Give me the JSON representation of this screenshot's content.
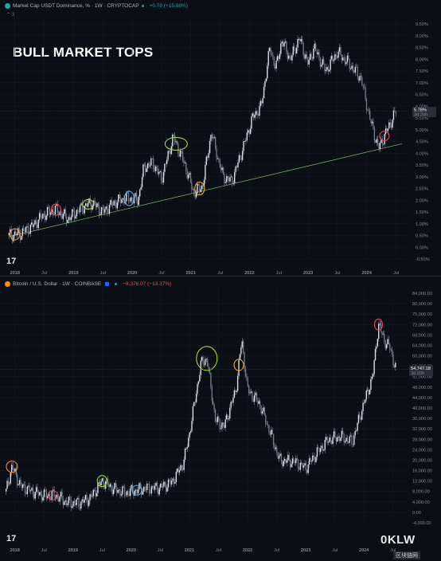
{
  "annotation_title": "BULL MARKET TOPS",
  "colors": {
    "candle": "#d8dde6",
    "wick": "#9aa3b2",
    "support_line": "#7cc46a",
    "circle_orange": "#f08a3c",
    "circle_red": "#e5455c",
    "circle_green": "#9ed84a",
    "circle_blue": "#5fa8e8",
    "circle_yellow": "#f0b23c"
  },
  "top_pane": {
    "legend": {
      "name": "Market Cap USDT Dominance, % · 1W · CRYPTOCAP",
      "change": "+0.78 (+15.88%)",
      "collapse": "⌃ 3"
    },
    "price_tag": "5.78%",
    "countdown": "3d 20h",
    "x_labels": [
      "2018",
      "Jul",
      "2019",
      "Jul",
      "2020",
      "Jul",
      "2021",
      "Jul",
      "2022",
      "Jul",
      "2023",
      "Jul",
      "2024",
      "Jul"
    ],
    "y_labels": [
      "9.50%",
      "9.00%",
      "8.50%",
      "8.00%",
      "7.50%",
      "7.00%",
      "6.50%",
      "6.00%",
      "5.50%",
      "5.00%",
      "4.50%",
      "4.00%",
      "3.50%",
      "3.00%",
      "2.50%",
      "2.00%",
      "1.50%",
      "1.00%",
      "0.50%",
      "0.00%",
      "-0.50%"
    ]
  },
  "bottom_pane": {
    "legend": {
      "name": "Bitcoin / U.S. Dollar · 1W · COINBASE",
      "change": "−8,376.07 (−13.37%)"
    },
    "price_tag": "54,747.18",
    "countdown": "3d 20h",
    "x_labels": [
      "2018",
      "Jul",
      "2019",
      "Jul",
      "2020",
      "Jul",
      "2021",
      "Jul",
      "2022",
      "Jul",
      "2023",
      "Jul",
      "2024",
      "Jul"
    ],
    "y_labels": [
      "84,000.00",
      "80,000.00",
      "75,000.00",
      "72,000.00",
      "68,000.00",
      "64,000.00",
      "60,000.00",
      "56,000.00",
      "52,000.00",
      "48,000.00",
      "44,000.00",
      "40,000.00",
      "36,000.00",
      "32,000.00",
      "28,000.00",
      "24,000.00",
      "20,000.00",
      "16,000.00",
      "12,000.00",
      "8,000.00",
      "4,000.00",
      "0.00",
      "-4,000.00"
    ]
  },
  "watermark": {
    "main": "0KLW",
    "sub": "区块链网"
  },
  "chart_data": [
    {
      "type": "line",
      "title": "",
      "xlabel": "",
      "ylabel": "",
      "ylim": [
        -0.5,
        9.5
      ],
      "x": [
        2017.9,
        2018.1,
        2018.3,
        2018.5,
        2018.7,
        2018.9,
        2019.1,
        2019.3,
        2019.5,
        2019.7,
        2019.9,
        2020.1,
        2020.2,
        2020.35,
        2020.5,
        2020.7,
        2020.9,
        2021.05,
        2021.2,
        2021.35,
        2021.45,
        2021.55,
        2021.7,
        2021.9,
        2022.05,
        2022.2,
        2022.35,
        2022.45,
        2022.55,
        2022.7,
        2022.85,
        2023.0,
        2023.1,
        2023.3,
        2023.5,
        2023.7,
        2023.9,
        2024.05,
        2024.2,
        2024.35,
        2024.5
      ],
      "series": [
        {
          "values": [
            0.5,
            0.6,
            0.9,
            1.4,
            1.6,
            1.2,
            1.6,
            1.9,
            1.5,
            1.9,
            2.1,
            2.0,
            3.4,
            3.6,
            2.9,
            4.7,
            3.5,
            2.3,
            2.6,
            4.9,
            3.9,
            3.0,
            2.8,
            4.3,
            5.5,
            6.0,
            8.5,
            7.6,
            8.8,
            8.0,
            8.9,
            7.8,
            8.5,
            7.5,
            8.3,
            7.8,
            7.2,
            5.5,
            4.2,
            5.0,
            5.8
          ]
        }
      ],
      "support_line": {
        "x": [
          2017.9,
          2024.6
        ],
        "y": [
          0.45,
          4.4
        ]
      },
      "highlighted_tops_x": [
        2018.0,
        2018.7,
        2019.25,
        2019.95,
        2020.75,
        2021.15,
        2024.3
      ]
    },
    {
      "type": "line",
      "title": "",
      "xlabel": "",
      "ylabel": "",
      "ylim": [
        -4000,
        84000
      ],
      "x": [
        2017.85,
        2017.95,
        2018.1,
        2018.3,
        2018.5,
        2018.7,
        2018.9,
        2019.1,
        2019.3,
        2019.5,
        2019.7,
        2019.9,
        2020.2,
        2020.5,
        2020.7,
        2020.9,
        2021.0,
        2021.2,
        2021.3,
        2021.45,
        2021.6,
        2021.8,
        2021.9,
        2022.0,
        2022.2,
        2022.4,
        2022.55,
        2022.8,
        2023.0,
        2023.2,
        2023.4,
        2023.6,
        2023.8,
        2024.0,
        2024.15,
        2024.25,
        2024.35,
        2024.45,
        2024.55
      ],
      "series": [
        {
          "values": [
            8000,
            17500,
            10000,
            8000,
            6500,
            6500,
            3700,
            3500,
            5500,
            12000,
            9000,
            7500,
            9000,
            9500,
            11500,
            19000,
            30000,
            57000,
            59000,
            35000,
            33000,
            47000,
            66000,
            47000,
            42000,
            30000,
            20000,
            19500,
            17000,
            23000,
            28000,
            29000,
            27000,
            42000,
            52000,
            72000,
            66000,
            63000,
            54747
          ]
        }
      ],
      "highlighted_tops_x": [
        2017.95,
        2018.65,
        2019.5,
        2020.1,
        2021.3,
        2021.85,
        2024.25
      ]
    }
  ]
}
